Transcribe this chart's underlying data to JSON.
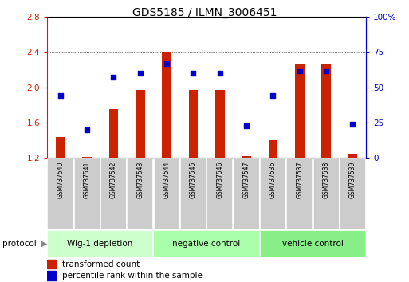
{
  "title": "GDS5185 / ILMN_3006451",
  "samples": [
    "GSM737540",
    "GSM737541",
    "GSM737542",
    "GSM737543",
    "GSM737544",
    "GSM737545",
    "GSM737546",
    "GSM737547",
    "GSM737536",
    "GSM737537",
    "GSM737538",
    "GSM737539"
  ],
  "transformed_count": [
    1.44,
    1.21,
    1.75,
    1.97,
    2.4,
    1.97,
    1.97,
    1.22,
    1.4,
    2.27,
    2.27,
    1.25
  ],
  "percentile_rank": [
    44,
    20,
    57,
    60,
    67,
    60,
    60,
    23,
    44,
    62,
    62,
    24
  ],
  "bar_color": "#cc2200",
  "dot_color": "#0000cc",
  "ylim_left": [
    1.2,
    2.8
  ],
  "ylim_right": [
    0,
    100
  ],
  "yticks_left": [
    1.2,
    1.6,
    2.0,
    2.4,
    2.8
  ],
  "yticks_right": [
    0,
    25,
    50,
    75,
    100
  ],
  "ytick_labels_right": [
    "0",
    "25",
    "50",
    "75",
    "100%"
  ],
  "groups": [
    {
      "label": "Wig-1 depletion",
      "start": 0,
      "end": 4,
      "color": "#ccffcc"
    },
    {
      "label": "negative control",
      "start": 4,
      "end": 8,
      "color": "#aaffaa"
    },
    {
      "label": "vehicle control",
      "start": 8,
      "end": 12,
      "color": "#88ee88"
    }
  ],
  "protocol_label": "protocol",
  "legend_bar_label": "transformed count",
  "legend_dot_label": "percentile rank within the sample",
  "bar_bottom": 1.2,
  "title_fontsize": 10,
  "tick_fontsize": 7.5,
  "sample_fontsize": 5.5,
  "group_fontsize": 7.5,
  "legend_fontsize": 7.5
}
